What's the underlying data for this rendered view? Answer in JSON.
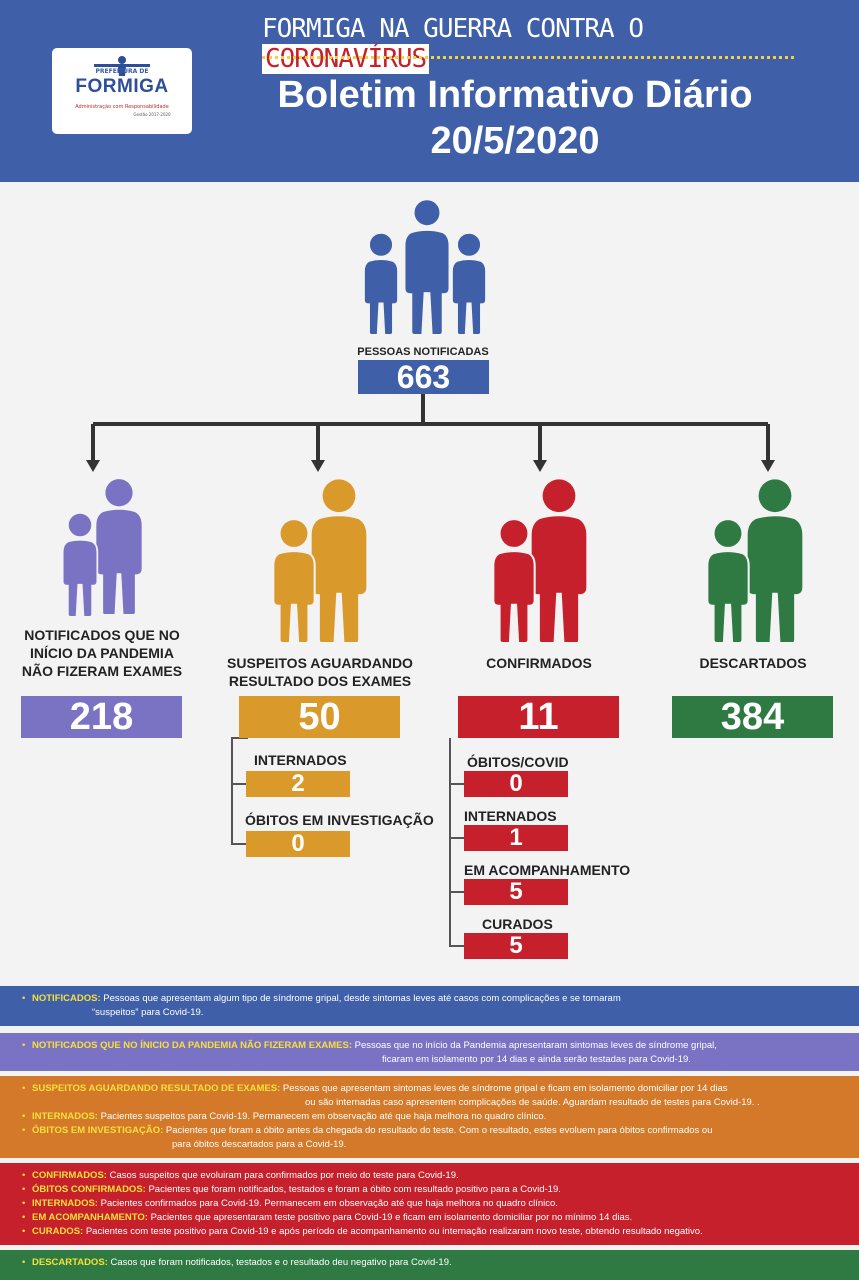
{
  "header": {
    "top_line_pre": "FORMIGA NA GUERRA CONTRA O",
    "top_line_red": "CORONAVÍRUS",
    "title": "Boletim Informativo Diário",
    "date": "20/5/2020",
    "logo": {
      "pref": "PREFEITURA DE",
      "name": "FORMIGA",
      "slogan": "Administração com Responsabilidade",
      "gestao": "Gestão 2017-2020"
    }
  },
  "colors": {
    "blue": "#3f5fa8",
    "purple": "#7a73c4",
    "orange": "#d99a2b",
    "red": "#c5202b",
    "green": "#2e7a42"
  },
  "notificadas": {
    "label": "PESSOAS NOTIFICADAS",
    "value": "663"
  },
  "groups": {
    "sem_exames": {
      "label_1": "NOTIFICADOS QUE NO",
      "label_2": "INÍCIO DA PANDEMIA",
      "label_3": "NÃO FIZERAM EXAMES",
      "value": "218"
    },
    "suspeitos": {
      "label_1": "SUSPEITOS AGUARDANDO",
      "label_2": "RESULTADO DOS EXAMES",
      "value": "50",
      "internados_label": "INTERNADOS",
      "internados_value": "2",
      "obitos_label": "ÓBITOS EM INVESTIGAÇÃO",
      "obitos_value": "0"
    },
    "confirmados": {
      "label": "CONFIRMADOS",
      "value": "11",
      "obitos_label": "ÓBITOS/COVID",
      "obitos_value": "0",
      "internados_label": "INTERNADOS",
      "internados_value": "1",
      "acomp_label": "EM ACOMPANHAMENTO",
      "acomp_value": "5",
      "curados_label": "CURADOS",
      "curados_value": "5"
    },
    "descartados": {
      "label": "DESCARTADOS",
      "value": "384"
    }
  },
  "legend": {
    "notificados_k": "NOTIFICADOS:",
    "notificados_t1": "Pessoas que apresentam algum tipo de síndrome gripal, desde sintomas leves até casos com complicações e se tornaram",
    "notificados_t2": "“suspeitos” para Covid-19.",
    "sem_exames_k": "NOTIFICADOS QUE NO ÍNICIO DA PANDEMIA NÃO FIZERAM EXAMES:",
    "sem_exames_t1": "Pessoas que no início da Pandemia apresentaram sintomas leves de síndrome gripal,",
    "sem_exames_t2": "ficaram em isolamento por 14 dias e ainda serão testadas para Covid-19.",
    "susp_k": "SUSPEITOS AGUARDANDO RESULTADO DE EXAMES:",
    "susp_t1": "Pessoas que apresentam sintomas leves de síndrome gripal e ficam em isolamento domiciliar por 14 dias",
    "susp_t2": "ou são internadas caso apresentem complicações de saúde. Aguardam resultado de testes para Covid-19. .",
    "int_k": "INTERNADOS:",
    "int_t": "Pacientes suspeitos para Covid-19. Permanecem em observação até que haja melhora no quadro clínico.",
    "obinv_k": "ÓBITOS EM INVESTIGAÇÃO:",
    "obinv_t1": "Pacientes que foram a óbito antes da chegada do resultado do teste. Com o resultado, estes evoluem para óbitos confirmados ou",
    "obinv_t2": "para óbitos descartados para a Covid-19.",
    "conf_k": "CONFIRMADOS:",
    "conf_t": "Casos suspeitos que evoluiram para confirmados por meio do teste para Covid-19.",
    "obconf_k": "ÓBITOS CONFIRMADOS:",
    "obconf_t": "Pacientes que foram notificados, testados e foram a óbito com resultado positivo para a Covid-19.",
    "int2_k": "INTERNADOS:",
    "int2_t": "Pacientes confirmados para Covid-19. Permanecem em observação até que haja melhora no quadro clínico.",
    "acomp_k": "EM ACOMPANHAMENTO:",
    "acomp_t": "Pacientes que apresentaram teste positivo para Covid-19 e ficam em isolamento domiciliar por no mínimo 14 dias.",
    "cur_k": "CURADOS:",
    "cur_t": "Pacientes com teste positivo para Covid-19 e após período de acompanhamento ou internação realizaram novo teste, obtendo resultado negativo.",
    "desc_k": "DESCARTADOS:",
    "desc_t": "Casos que foram notificados, testados e o resultado deu negativo para Covid-19."
  }
}
